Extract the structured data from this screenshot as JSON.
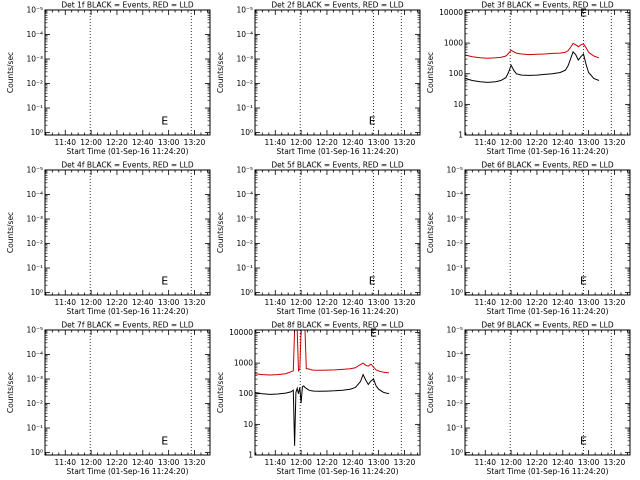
{
  "chart_data": [
    {
      "type": "line",
      "title": "Det 1f BLACK = Events, RED = LLD",
      "xlabel": "Start Time (01-Sep-16 11:24:20)",
      "ylabel": "Counts/sec",
      "x_tick_labels": [
        "11:40",
        "12:00",
        "12:20",
        "12:40",
        "13:00",
        "13:20"
      ],
      "x_tick_minutes": [
        40,
        60,
        80,
        100,
        120,
        140
      ],
      "xlim_minutes": [
        24.33,
        152
      ],
      "y_scale": "log",
      "y_tick_labels": [
        "10⁰",
        "10⁻¹",
        "10⁻²",
        "10⁻³",
        "10⁻⁴",
        "10⁻⁵"
      ],
      "y_tick_positions": [
        0,
        1,
        2,
        3,
        4,
        5
      ],
      "ylim_positions": [
        -0.1,
        5
      ],
      "dotted_lines_minutes": [
        59.3,
        137.5
      ],
      "markers": [
        {
          "label": "E",
          "x_minutes": 117,
          "y_position": 0.5
        }
      ],
      "series": []
    },
    {
      "type": "line",
      "title": "Det 2f BLACK = Events, RED = LLD",
      "xlabel": "Start Time (01-Sep-16 11:24:20)",
      "ylabel": "Counts/sec",
      "x_tick_labels": [
        "11:40",
        "12:00",
        "12:20",
        "12:40",
        "13:00",
        "13:20"
      ],
      "x_tick_minutes": [
        40,
        60,
        80,
        100,
        120,
        140
      ],
      "xlim_minutes": [
        24.33,
        152
      ],
      "y_scale": "log",
      "y_tick_labels": [
        "10⁰",
        "10⁻¹",
        "10⁻²",
        "10⁻³",
        "10⁻⁴",
        "10⁻⁵"
      ],
      "y_tick_positions": [
        0,
        1,
        2,
        3,
        4,
        5
      ],
      "ylim_positions": [
        -0.1,
        5
      ],
      "dotted_lines_minutes": [
        59.3,
        116,
        137.5
      ],
      "markers": [
        {
          "label": "E",
          "x_minutes": 115,
          "y_position": 0.5
        }
      ],
      "series": []
    },
    {
      "type": "line",
      "title": "Det 3f BLACK = Events, RED = LLD",
      "xlabel": "Start Time (01-Sep-16 11:24:20)",
      "ylabel": "Counts/sec",
      "x_tick_labels": [
        "11:40",
        "12:00",
        "12:20",
        "12:40",
        "13:00",
        "13:20"
      ],
      "x_tick_minutes": [
        40,
        60,
        80,
        100,
        120,
        140
      ],
      "xlim_minutes": [
        24.33,
        152
      ],
      "y_scale": "log",
      "y_tick_labels": [
        "1",
        "10",
        "100",
        "1000",
        "10000"
      ],
      "y_tick_positions": [
        0,
        1,
        2,
        3,
        4
      ],
      "ylim_positions": [
        0,
        4.08
      ],
      "dotted_lines_minutes": [
        59.3,
        116,
        137.5
      ],
      "markers": [
        {
          "label": "E",
          "x_minutes": 116,
          "y_position": 4.0
        }
      ],
      "series": [
        {
          "color": "#cc0000",
          "x": [
            24.5,
            30,
            36,
            42,
            48,
            52,
            56,
            58,
            60,
            62,
            64,
            68,
            74,
            80,
            86,
            92,
            98,
            102,
            104,
            106,
            108,
            110,
            112,
            114,
            116,
            118,
            120,
            124,
            128
          ],
          "y": [
            410,
            360,
            330,
            320,
            330,
            340,
            380,
            460,
            580,
            520,
            470,
            440,
            420,
            430,
            440,
            460,
            470,
            500,
            560,
            720,
            980,
            880,
            760,
            880,
            950,
            700,
            500,
            380,
            330
          ]
        },
        {
          "color": "#000000",
          "x": [
            24.5,
            30,
            36,
            42,
            48,
            52,
            56,
            58,
            60,
            62,
            64,
            68,
            74,
            80,
            86,
            92,
            98,
            102,
            104,
            106,
            108,
            110,
            112,
            114,
            116,
            118,
            120,
            124,
            128
          ],
          "y": [
            70,
            60,
            55,
            52,
            55,
            60,
            75,
            110,
            190,
            130,
            100,
            90,
            88,
            90,
            95,
            100,
            110,
            130,
            180,
            300,
            520,
            420,
            280,
            360,
            440,
            200,
            110,
            70,
            60
          ]
        }
      ]
    },
    {
      "type": "line",
      "title": "Det 4f BLACK = Events, RED = LLD",
      "xlabel": "Start Time (01-Sep-16 11:24:20)",
      "ylabel": "Counts/sec",
      "x_tick_labels": [
        "11:40",
        "12:00",
        "12:20",
        "12:40",
        "13:00",
        "13:20"
      ],
      "x_tick_minutes": [
        40,
        60,
        80,
        100,
        120,
        140
      ],
      "xlim_minutes": [
        24.33,
        152
      ],
      "y_scale": "log",
      "y_tick_labels": [
        "10⁰",
        "10⁻¹",
        "10⁻²",
        "10⁻³",
        "10⁻⁴",
        "10⁻⁵"
      ],
      "y_tick_positions": [
        0,
        1,
        2,
        3,
        4,
        5
      ],
      "ylim_positions": [
        -0.1,
        5
      ],
      "dotted_lines_minutes": [
        59.3,
        137.5
      ],
      "markers": [
        {
          "label": "E",
          "x_minutes": 117,
          "y_position": 0.5
        }
      ],
      "series": []
    },
    {
      "type": "line",
      "title": "Det 5f BLACK = Events, RED = LLD",
      "xlabel": "Start Time (01-Sep-16 11:24:20)",
      "ylabel": "Counts/sec",
      "x_tick_labels": [
        "11:40",
        "12:00",
        "12:20",
        "12:40",
        "13:00",
        "13:20"
      ],
      "x_tick_minutes": [
        40,
        60,
        80,
        100,
        120,
        140
      ],
      "xlim_minutes": [
        24.33,
        152
      ],
      "y_scale": "log",
      "y_tick_labels": [
        "10⁰",
        "10⁻¹",
        "10⁻²",
        "10⁻³",
        "10⁻⁴",
        "10⁻⁵"
      ],
      "y_tick_positions": [
        0,
        1,
        2,
        3,
        4,
        5
      ],
      "ylim_positions": [
        -0.1,
        5
      ],
      "dotted_lines_minutes": [
        59.3,
        116,
        137.5
      ],
      "markers": [
        {
          "label": "E",
          "x_minutes": 115,
          "y_position": 0.5
        }
      ],
      "series": []
    },
    {
      "type": "line",
      "title": "Det 6f BLACK = Events, RED = LLD",
      "xlabel": "Start Time (01-Sep-16 11:24:20)",
      "ylabel": "Counts/sec",
      "x_tick_labels": [
        "11:40",
        "12:00",
        "12:20",
        "12:40",
        "13:00",
        "13:20"
      ],
      "x_tick_minutes": [
        40,
        60,
        80,
        100,
        120,
        140
      ],
      "xlim_minutes": [
        24.33,
        152
      ],
      "y_scale": "log",
      "y_tick_labels": [
        "10⁰",
        "10⁻¹",
        "10⁻²",
        "10⁻³",
        "10⁻⁴",
        "10⁻⁵"
      ],
      "y_tick_positions": [
        0,
        1,
        2,
        3,
        4,
        5
      ],
      "ylim_positions": [
        -0.1,
        5
      ],
      "dotted_lines_minutes": [
        59.3,
        116,
        137.5
      ],
      "markers": [
        {
          "label": "E",
          "x_minutes": 116,
          "y_position": 0.5
        }
      ],
      "series": []
    },
    {
      "type": "line",
      "title": "Det 7f BLACK = Events, RED = LLD",
      "xlabel": "Start Time (01-Sep-16 11:24:20)",
      "ylabel": "Counts/sec",
      "x_tick_labels": [
        "11:40",
        "12:00",
        "12:20",
        "12:40",
        "13:00",
        "13:20"
      ],
      "x_tick_minutes": [
        40,
        60,
        80,
        100,
        120,
        140
      ],
      "xlim_minutes": [
        24.33,
        152
      ],
      "y_scale": "log",
      "y_tick_labels": [
        "10⁰",
        "10⁻¹",
        "10⁻²",
        "10⁻³",
        "10⁻⁴",
        "10⁻⁵"
      ],
      "y_tick_positions": [
        0,
        1,
        2,
        3,
        4,
        5
      ],
      "ylim_positions": [
        -0.1,
        5
      ],
      "dotted_lines_minutes": [
        59.3,
        137.5
      ],
      "markers": [
        {
          "label": "E",
          "x_minutes": 117,
          "y_position": 0.5
        }
      ],
      "series": []
    },
    {
      "type": "line",
      "title": "Det 8f BLACK = Events, RED = LLD",
      "xlabel": "Start Time (01-Sep-16 11:24:20)",
      "ylabel": "Counts/sec",
      "x_tick_labels": [
        "11:40",
        "12:00",
        "12:20",
        "12:40",
        "13:00",
        "13:20"
      ],
      "x_tick_minutes": [
        40,
        60,
        80,
        100,
        120,
        140
      ],
      "xlim_minutes": [
        24.33,
        152
      ],
      "y_scale": "log",
      "y_tick_labels": [
        "1",
        "10",
        "100",
        "1000",
        "10000"
      ],
      "y_tick_positions": [
        0,
        1,
        2,
        3,
        4
      ],
      "ylim_positions": [
        0,
        4.08
      ],
      "dotted_lines_minutes": [
        59.3,
        116,
        137.5
      ],
      "markers": [
        {
          "label": "E",
          "x_minutes": 116,
          "y_position": 4.0
        }
      ],
      "series": [
        {
          "color": "#cc0000",
          "x": [
            24.5,
            30,
            36,
            42,
            48,
            52,
            54,
            55,
            56,
            57,
            58,
            59,
            60,
            61,
            62,
            63,
            64,
            66,
            68,
            70,
            74,
            80,
            86,
            92,
            98,
            102,
            106,
            108,
            110,
            112,
            114,
            116,
            118,
            120,
            124,
            128
          ],
          "y": [
            450,
            420,
            410,
            420,
            450,
            520,
            560,
            12000,
            12000,
            12000,
            560,
            620,
            12000,
            12000,
            12000,
            12000,
            660,
            640,
            600,
            590,
            580,
            590,
            600,
            620,
            650,
            700,
            900,
            1000,
            850,
            800,
            920,
            750,
            600,
            550,
            500,
            480
          ]
        },
        {
          "color": "#000000",
          "x": [
            24.5,
            30,
            36,
            42,
            48,
            52,
            54,
            55,
            56,
            57,
            58,
            59,
            60,
            61,
            62,
            63,
            64,
            66,
            68,
            70,
            74,
            80,
            86,
            92,
            98,
            102,
            106,
            108,
            110,
            112,
            114,
            116,
            118,
            120,
            124,
            128
          ],
          "y": [
            110,
            100,
            95,
            98,
            105,
            115,
            130,
            2,
            110,
            150,
            100,
            160,
            50,
            170,
            180,
            160,
            150,
            130,
            125,
            122,
            120,
            122,
            125,
            130,
            140,
            160,
            250,
            420,
            280,
            200,
            260,
            300,
            180,
            140,
            110,
            100
          ]
        }
      ]
    },
    {
      "type": "line",
      "title": "Det 9f BLACK = Events, RED = LLD",
      "xlabel": "Start Time (01-Sep-16 11:24:20)",
      "ylabel": "Counts/sec",
      "x_tick_labels": [
        "11:40",
        "12:00",
        "12:20",
        "12:40",
        "13:00",
        "13:20"
      ],
      "x_tick_minutes": [
        40,
        60,
        80,
        100,
        120,
        140
      ],
      "xlim_minutes": [
        24.33,
        152
      ],
      "y_scale": "log",
      "y_tick_labels": [
        "10⁰",
        "10⁻¹",
        "10⁻²",
        "10⁻³",
        "10⁻⁴",
        "10⁻⁵"
      ],
      "y_tick_positions": [
        0,
        1,
        2,
        3,
        4,
        5
      ],
      "ylim_positions": [
        -0.1,
        5
      ],
      "dotted_lines_minutes": [
        59.3,
        116,
        137.5
      ],
      "markers": [
        {
          "label": "E",
          "x_minutes": 116,
          "y_position": 0.5
        }
      ],
      "series": []
    }
  ]
}
